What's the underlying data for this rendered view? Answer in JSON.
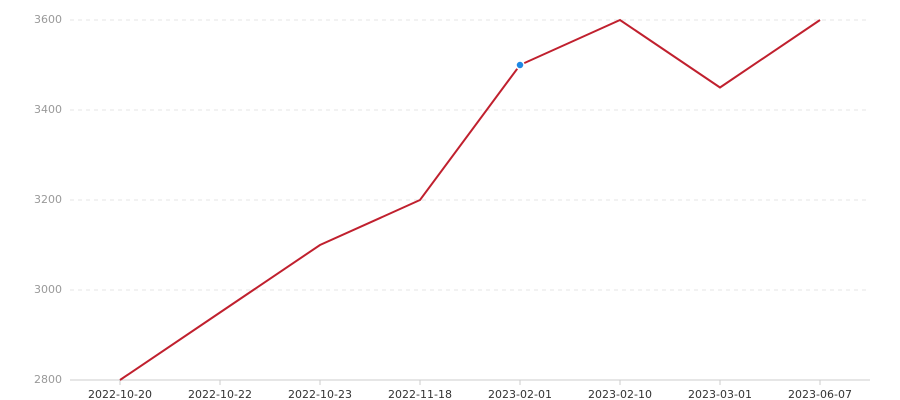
{
  "chart_data": {
    "type": "line",
    "categories": [
      "2022-10-20",
      "2022-10-22",
      "2022-10-23",
      "2022-11-18",
      "2023-02-01",
      "2023-02-10",
      "2023-03-01",
      "2023-06-07"
    ],
    "series": [
      {
        "color": "#c0202e",
        "values": [
          2800,
          2950,
          3100,
          3200,
          3500,
          3600,
          3450,
          3600
        ]
      }
    ],
    "ylim": [
      2800,
      3600
    ],
    "yticks": [
      2800,
      3000,
      3200,
      3400,
      3600
    ],
    "grid": true,
    "highlight_index": 4,
    "highlight_color": "#1e88e5"
  }
}
